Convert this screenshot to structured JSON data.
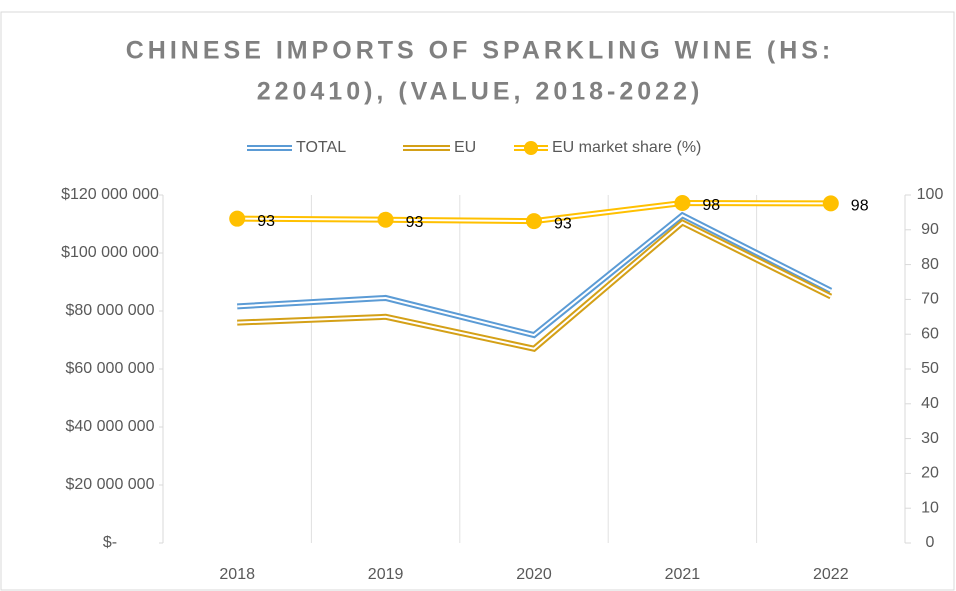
{
  "chart_data": {
    "type": "line",
    "title": [
      "CHINESE IMPORTS OF SPARKLING WINE (HS:",
      "220410), (VALUE, 2018-2022)"
    ],
    "categories": [
      "2018",
      "2019",
      "2020",
      "2021",
      "2022"
    ],
    "series": [
      {
        "name": "TOTAL",
        "color": "#5b9bd5",
        "values": [
          81600000,
          84500000,
          71700000,
          113000000,
          87000000
        ]
      },
      {
        "name": "EU",
        "color": "#d4a017",
        "values": [
          76000000,
          78000000,
          67000000,
          110500000,
          85000000
        ]
      },
      {
        "name": "EU market share (%)",
        "color": "#ffc000",
        "axis": "y2",
        "marker": "circle",
        "values": [
          93.2,
          92.9,
          92.5,
          97.7,
          97.6
        ],
        "value_labels": [
          "93",
          "93",
          "93",
          "98",
          "98"
        ]
      }
    ],
    "ylim": [
      0,
      120000000
    ],
    "yticks": [
      {
        "value": 0,
        "label": "$-"
      },
      {
        "value": 20000000,
        "label": "$20 000 000"
      },
      {
        "value": 40000000,
        "label": "$40 000 000"
      },
      {
        "value": 60000000,
        "label": "$60 000 000"
      },
      {
        "value": 80000000,
        "label": "$80 000 000"
      },
      {
        "value": 100000000,
        "label": "$100 000 000"
      },
      {
        "value": 120000000,
        "label": "$120 000 000"
      }
    ],
    "y2lim": [
      0,
      100
    ],
    "y2ticks": [
      0,
      10,
      20,
      30,
      40,
      50,
      60,
      70,
      80,
      90,
      100
    ],
    "legend": "top"
  }
}
